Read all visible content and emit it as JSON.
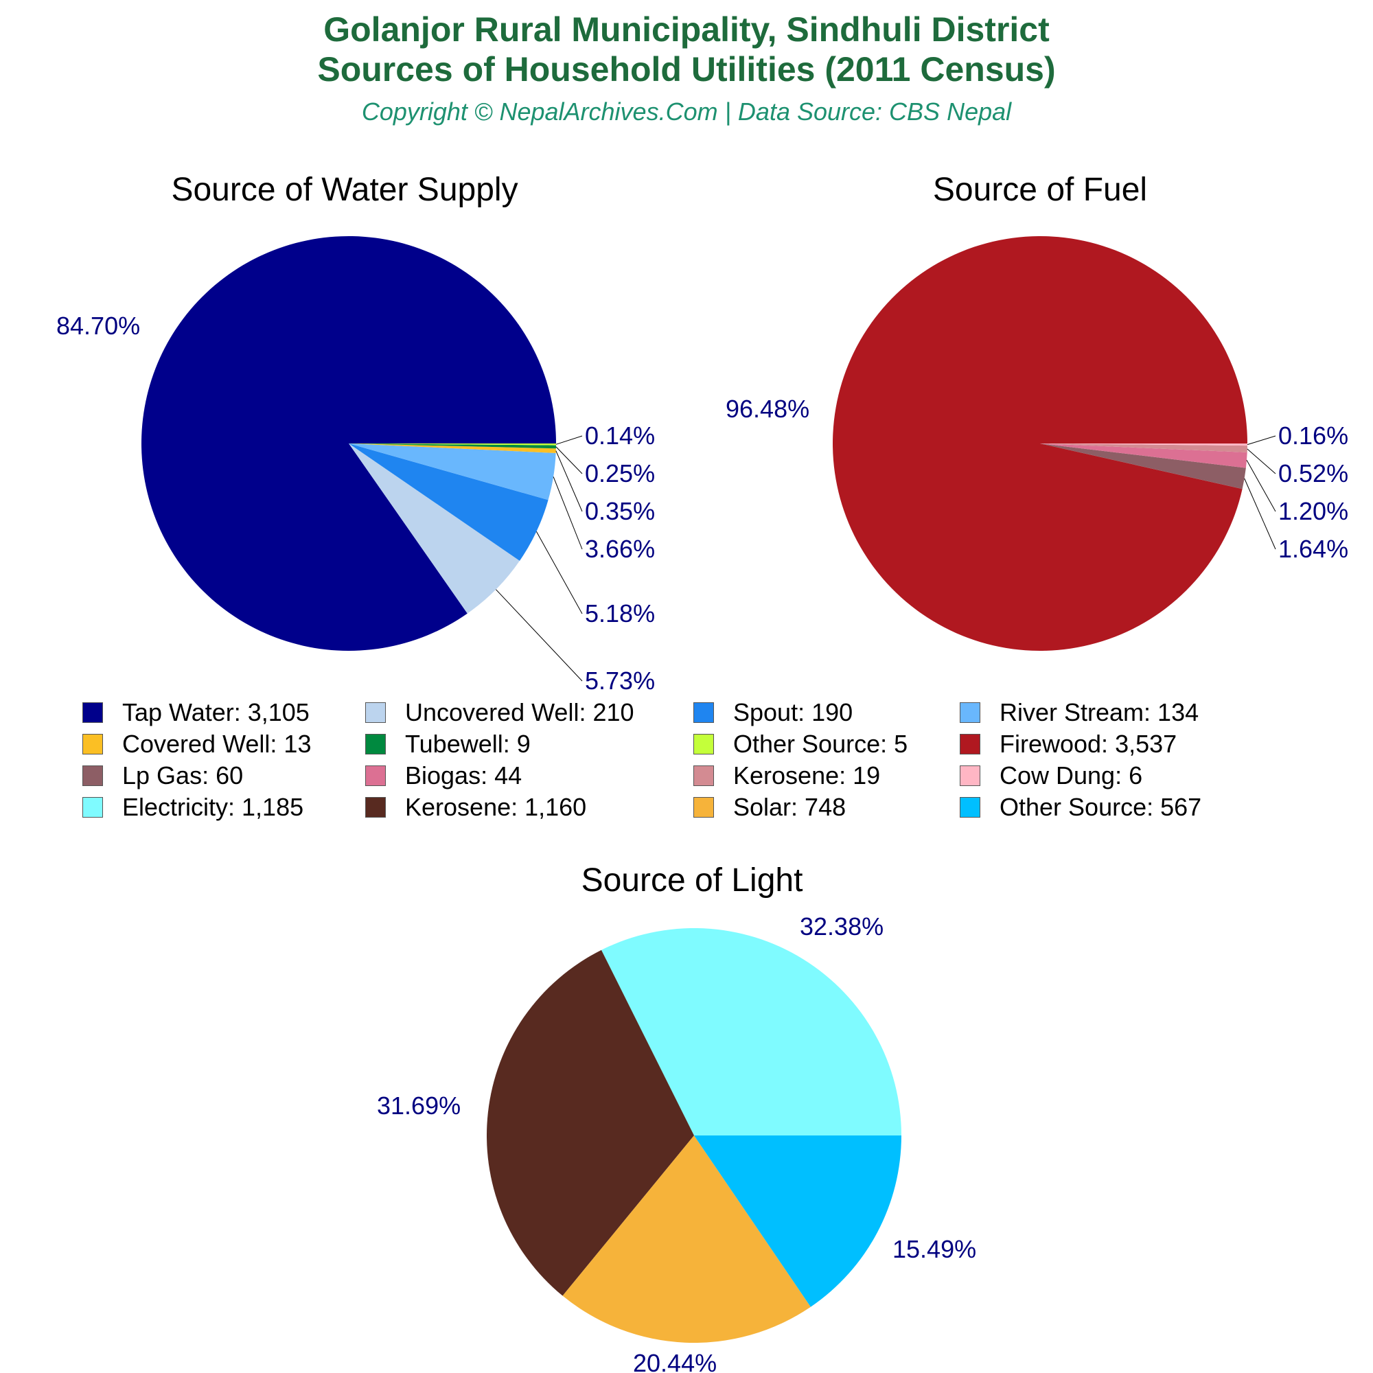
{
  "header": {
    "title_line1": "Golanjor Rural Municipality, Sindhuli District",
    "title_line2": "Sources of Household Utilities (2011 Census)",
    "subtitle": "Copyright © NepalArchives.Com | Data Source: CBS Nepal"
  },
  "chart_data": [
    {
      "type": "pie",
      "title": "Source of Water Supply",
      "categories": [
        "Tap Water",
        "Uncovered Well",
        "Spout",
        "River Stream",
        "Covered Well",
        "Tubewell",
        "Other Source"
      ],
      "values": [
        3105,
        210,
        190,
        134,
        13,
        9,
        5
      ],
      "percent_labels": [
        "84.70%",
        "5.73%",
        "5.18%",
        "3.66%",
        "0.35%",
        "0.25%",
        "0.14%"
      ],
      "colors": [
        "#00008b",
        "#bcd4ee",
        "#1f85f0",
        "#69b7fd",
        "#fbbf24",
        "#00893f",
        "#c4ff3a"
      ]
    },
    {
      "type": "pie",
      "title": "Source of Fuel",
      "categories": [
        "Firewood",
        "Lp Gas",
        "Biogas",
        "Kerosene",
        "Cow Dung"
      ],
      "values": [
        3537,
        60,
        44,
        19,
        6
      ],
      "percent_labels": [
        "96.48%",
        "1.64%",
        "1.20%",
        "0.52%",
        "0.16%"
      ],
      "colors": [
        "#b01820",
        "#8d5e65",
        "#dc7093",
        "#d38b92",
        "#ffb6c4"
      ]
    },
    {
      "type": "pie",
      "title": "Source of Light",
      "categories": [
        "Electricity",
        "Kerosene",
        "Solar",
        "Other Source"
      ],
      "values": [
        1185,
        1160,
        748,
        567
      ],
      "percent_labels": [
        "32.38%",
        "31.69%",
        "20.44%",
        "15.49%"
      ],
      "colors": [
        "#7ffbff",
        "#582a20",
        "#f6b33a",
        "#00bfff"
      ]
    }
  ],
  "legend": [
    {
      "label": "Tap Water: 3,105",
      "color": "#00008b"
    },
    {
      "label": "Uncovered Well: 210",
      "color": "#bcd4ee"
    },
    {
      "label": "Spout: 190",
      "color": "#1f85f0"
    },
    {
      "label": "River Stream: 134",
      "color": "#69b7fd"
    },
    {
      "label": "Covered Well: 13",
      "color": "#fbbf24"
    },
    {
      "label": "Tubewell: 9",
      "color": "#00893f"
    },
    {
      "label": "Other Source: 5",
      "color": "#c4ff3a"
    },
    {
      "label": "Firewood: 3,537",
      "color": "#b01820"
    },
    {
      "label": "Lp Gas: 60",
      "color": "#8d5e65"
    },
    {
      "label": "Biogas: 44",
      "color": "#dc7093"
    },
    {
      "label": "Kerosene: 19",
      "color": "#d38b92"
    },
    {
      "label": "Cow Dung: 6",
      "color": "#ffb6c4"
    },
    {
      "label": "Electricity: 1,185",
      "color": "#7ffbff"
    },
    {
      "label": "Kerosene: 1,160",
      "color": "#582a20"
    },
    {
      "label": "Solar: 748",
      "color": "#f6b33a"
    },
    {
      "label": "Other Source: 567",
      "color": "#00bfff"
    }
  ],
  "label_color": "#000080"
}
